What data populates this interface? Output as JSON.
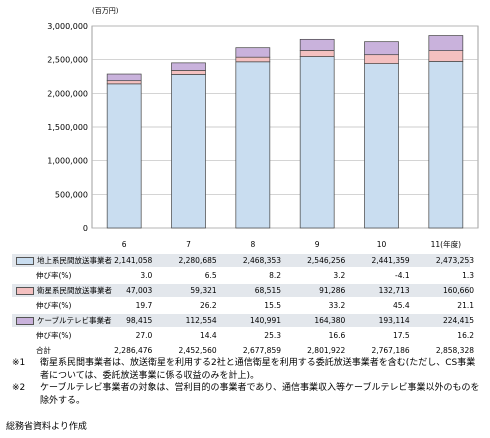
{
  "unit_label": "(百万円)",
  "chart_data": {
    "type": "bar",
    "stacked": true,
    "categories": [
      "6",
      "7",
      "8",
      "9",
      "10",
      "11"
    ],
    "category_suffix_last": "(年度)",
    "ylim": [
      0,
      3000000
    ],
    "yticks": [
      "0",
      "500,000",
      "1,000,000",
      "1,500,000",
      "2,000,000",
      "2,500,000",
      "3,000,000"
    ],
    "ytick_values": [
      0,
      500000,
      1000000,
      1500000,
      2000000,
      2500000,
      3000000
    ],
    "grid": true,
    "series": [
      {
        "name": "地上系民間放送事業者",
        "values": [
          2141058,
          2280685,
          2468353,
          2546256,
          2441359,
          2473253
        ],
        "color": "#c9ddf0"
      },
      {
        "name": "衛星系民間放送事業者",
        "values": [
          47003,
          59321,
          68515,
          91286,
          132713,
          160660
        ],
        "color": "#f4c0c0"
      },
      {
        "name": "ケーブルテレビ事業者",
        "values": [
          98415,
          112554,
          140991,
          164380,
          193114,
          224415
        ],
        "color": "#c9b2dc"
      }
    ]
  },
  "table": {
    "rows": [
      {
        "label": "地上系民間放送事業者",
        "swatch": "#c9ddf0",
        "cells": [
          "2,141,058",
          "2,280,685",
          "2,468,353",
          "2,546,256",
          "2,441,359",
          "2,473,253"
        ]
      },
      {
        "label": "伸び率(%)",
        "swatch": null,
        "cells": [
          "3.0",
          "6.5",
          "8.2",
          "3.2",
          "-4.1",
          "1.3"
        ]
      },
      {
        "label": "衛星系民間放送事業者",
        "swatch": "#f4c0c0",
        "cells": [
          "47,003",
          "59,321",
          "68,515",
          "91,286",
          "132,713",
          "160,660"
        ]
      },
      {
        "label": "伸び率(%)",
        "swatch": null,
        "cells": [
          "19.7",
          "26.2",
          "15.5",
          "33.2",
          "45.4",
          "21.1"
        ]
      },
      {
        "label": "ケーブルテレビ事業者",
        "swatch": "#c9b2dc",
        "cells": [
          "98,415",
          "112,554",
          "140,991",
          "164,380",
          "193,114",
          "224,415"
        ]
      },
      {
        "label": "伸び率(%)",
        "swatch": null,
        "cells": [
          "27.0",
          "14.4",
          "25.3",
          "16.6",
          "17.5",
          "16.2"
        ]
      },
      {
        "label": "合計",
        "swatch": null,
        "cells": [
          "2,286,476",
          "2,452,560",
          "2,677,859",
          "2,801,922",
          "2,767,186",
          "2,858,328"
        ]
      }
    ]
  },
  "notes": [
    {
      "mark": "※1",
      "text": "衛星系民間事業者は、放送衛星を利用する2社と通信衛星を利用する委託放送事業者を含む(ただし、CS事業者については、委託放送事業に係る収益のみを計上)。"
    },
    {
      "mark": "※2",
      "text": "ケーブルテレビ事業者の対象は、営利目的の事業者であり、通信事業収入等ケーブルテレビ事業以外のものを除外する。"
    }
  ],
  "source": "総務省資料より作成"
}
